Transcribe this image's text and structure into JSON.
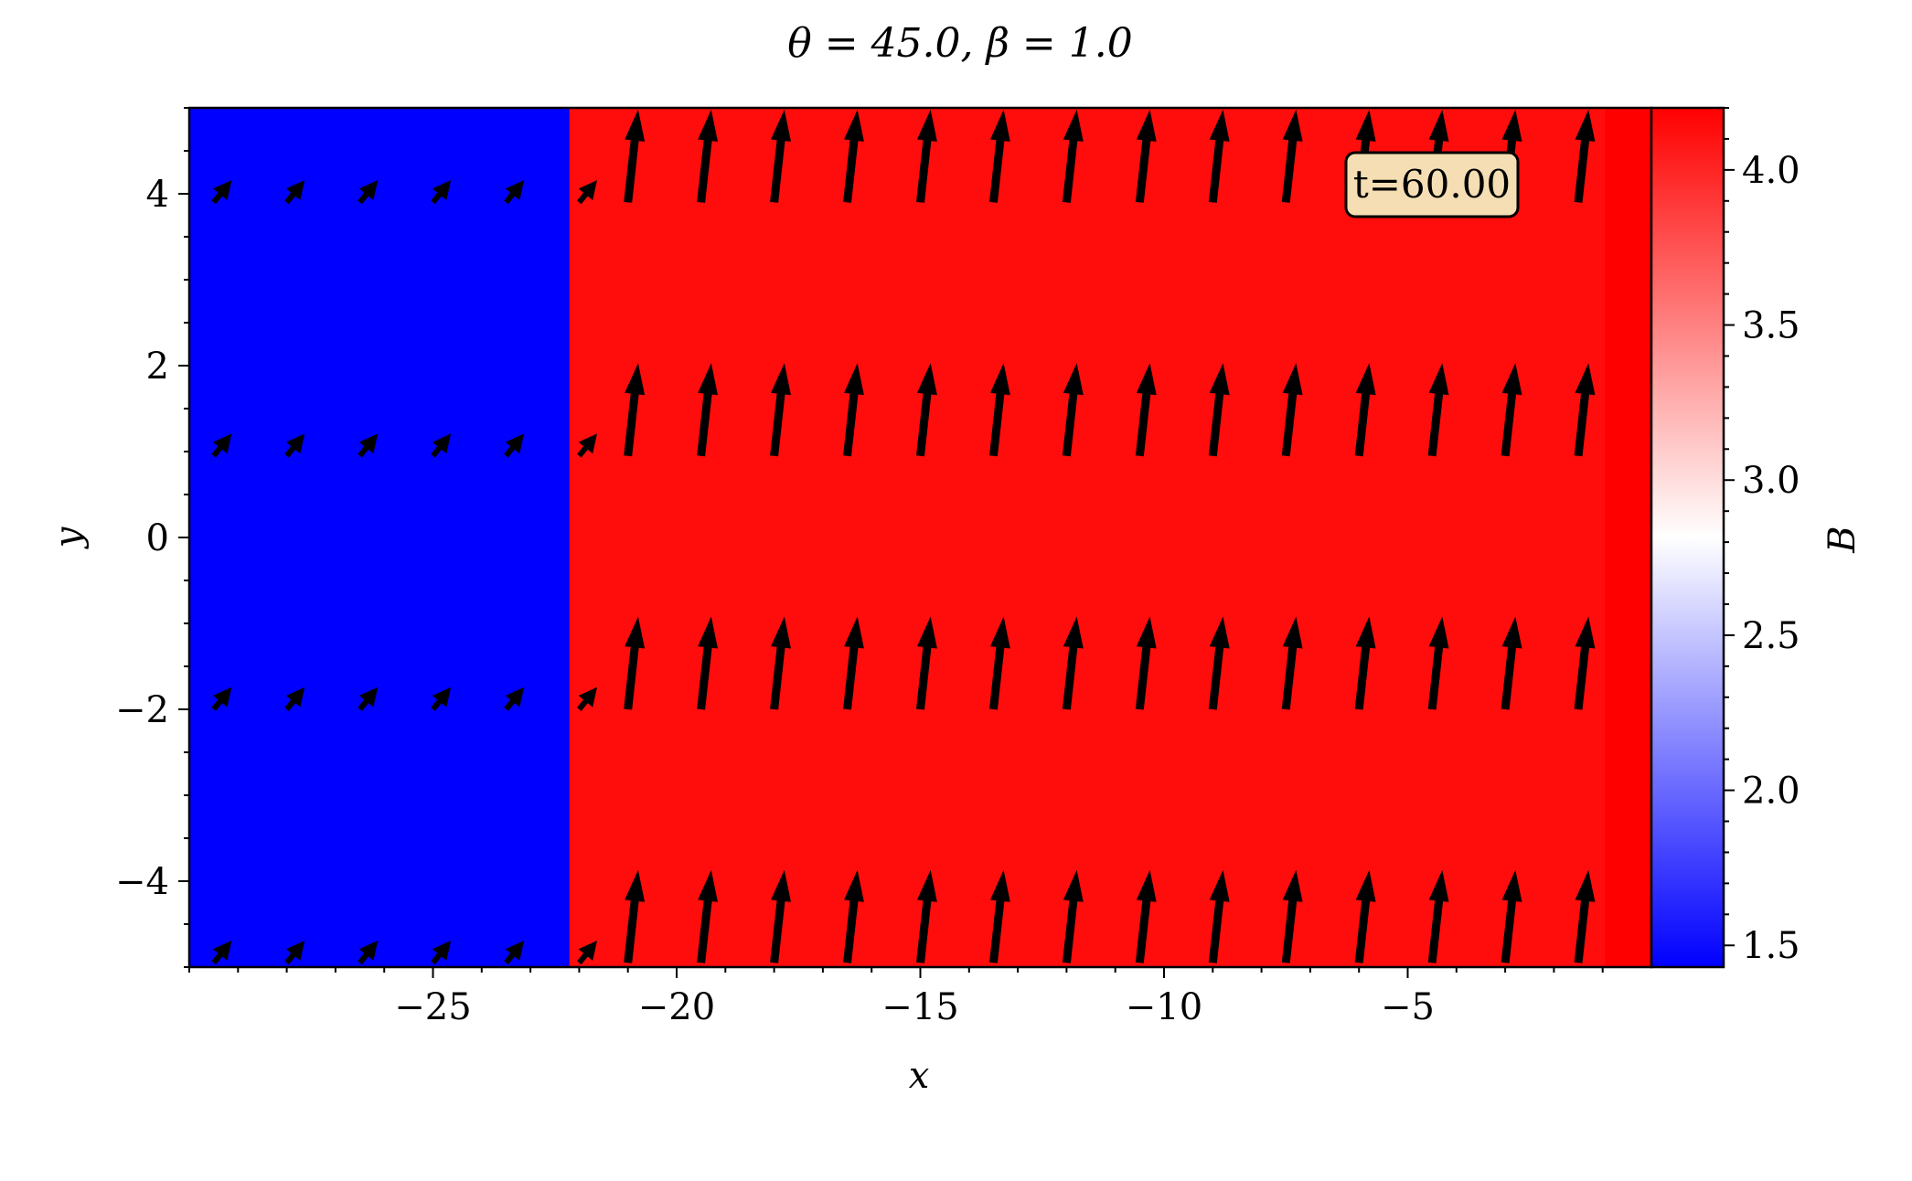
{
  "chart_data": {
    "type": "heatmap",
    "title": "θ = 45.0, β = 1.0",
    "xlabel": "x",
    "ylabel": "y",
    "xlim": [
      -30,
      0
    ],
    "ylim": [
      -5,
      5
    ],
    "x_ticks": [
      -25,
      -20,
      -15,
      -10,
      -5
    ],
    "x_tick_labels": [
      "−25",
      "−20",
      "−15",
      "−10",
      "−5"
    ],
    "y_ticks": [
      -4,
      -2,
      0,
      2,
      4
    ],
    "y_tick_labels": [
      "−4",
      "−2",
      "0",
      "2",
      "4"
    ],
    "annotation": "t=60.00",
    "colorbar": {
      "label": "B",
      "colormap": "bwr",
      "range": [
        1.43,
        4.2
      ],
      "ticks": [
        1.5,
        2.0,
        2.5,
        3.0,
        3.5,
        4.0
      ],
      "tick_labels": [
        "1.5",
        "2.0",
        "2.5",
        "3.0",
        "3.5",
        "4.0"
      ],
      "colors": {
        "low": "#0000ff",
        "mid": "#ffffff",
        "high": "#ff0000"
      }
    },
    "field_regions": [
      {
        "x_range": [
          -30,
          -22.2
        ],
        "B": 1.43,
        "color": "#0000ff"
      },
      {
        "x_range": [
          -22.2,
          -0.95
        ],
        "B": 4.1,
        "color": "#ff0c0c"
      },
      {
        "x_range": [
          -0.95,
          0
        ],
        "B": 4.2,
        "color": "#ff0000"
      }
    ],
    "quiver": {
      "rows_y": [
        3.9,
        0.95,
        -2.0,
        -4.95
      ],
      "upstream": {
        "x": [
          -29.5,
          -28.0,
          -26.5,
          -25.0,
          -23.5,
          -22.0
        ],
        "angle_deg": 35,
        "length": 0.45
      },
      "downstream": {
        "x": [
          -21.0,
          -19.5,
          -18.0,
          -16.5,
          -15.0,
          -13.5,
          -12.0,
          -10.5,
          -9.0,
          -7.5,
          -6.0,
          -4.5,
          -3.0,
          -1.5
        ],
        "angle_deg": 79,
        "length": 1.1
      }
    }
  }
}
